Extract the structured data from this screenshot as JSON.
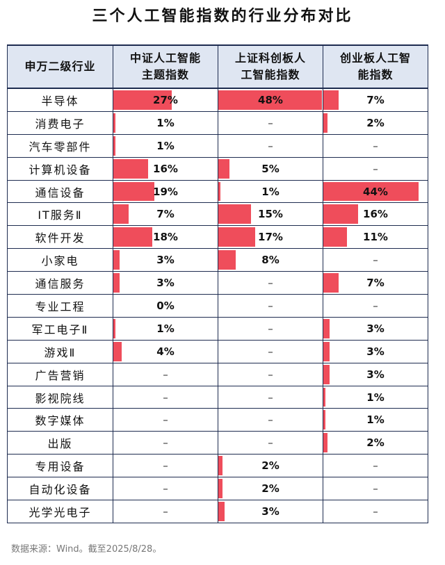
{
  "title": "三个人工智能指数的行业分布对比",
  "chart_data": {
    "type": "table",
    "columns": [
      "申万二级行业",
      "中证人工智能主题指数",
      "上证科创板人工智能指数",
      "创业板人工智能指数"
    ],
    "headers": [
      [
        "申万二级行业"
      ],
      [
        "中证人工智能",
        "主题指数"
      ],
      [
        "上证科创板人",
        "工智能指数"
      ],
      [
        "创业板人工智",
        "能指数"
      ]
    ],
    "bar_color": "#ef4d5b",
    "scale_max": 48,
    "rows": [
      {
        "industry": "半导体",
        "values": [
          27,
          48,
          7
        ],
        "labels": [
          "27%",
          "48%",
          "7%"
        ]
      },
      {
        "industry": "消费电子",
        "values": [
          1,
          null,
          2
        ],
        "labels": [
          "1%",
          "–",
          "2%"
        ]
      },
      {
        "industry": "汽车零部件",
        "values": [
          1,
          null,
          null
        ],
        "labels": [
          "1%",
          "–",
          "–"
        ]
      },
      {
        "industry": "计算机设备",
        "values": [
          16,
          5,
          null
        ],
        "labels": [
          "16%",
          "5%",
          "–"
        ]
      },
      {
        "industry": "通信设备",
        "values": [
          19,
          1,
          44
        ],
        "labels": [
          "19%",
          "1%",
          "44%"
        ]
      },
      {
        "industry": "IT服务Ⅱ",
        "values": [
          7,
          15,
          16
        ],
        "labels": [
          "7%",
          "15%",
          "16%"
        ]
      },
      {
        "industry": "软件开发",
        "values": [
          18,
          17,
          11
        ],
        "labels": [
          "18%",
          "17%",
          "11%"
        ]
      },
      {
        "industry": "小家电",
        "values": [
          3,
          8,
          null
        ],
        "labels": [
          "3%",
          "8%",
          "–"
        ]
      },
      {
        "industry": "通信服务",
        "values": [
          3,
          null,
          7
        ],
        "labels": [
          "3%",
          "–",
          "7%"
        ]
      },
      {
        "industry": "专业工程",
        "values": [
          0,
          null,
          null
        ],
        "labels": [
          "0%",
          "–",
          "–"
        ]
      },
      {
        "industry": "军工电子Ⅱ",
        "values": [
          1,
          null,
          3
        ],
        "labels": [
          "1%",
          "–",
          "3%"
        ]
      },
      {
        "industry": "游戏Ⅱ",
        "values": [
          4,
          null,
          3
        ],
        "labels": [
          "4%",
          "–",
          "3%"
        ]
      },
      {
        "industry": "广告营销",
        "values": [
          null,
          null,
          3
        ],
        "labels": [
          "–",
          "–",
          "3%"
        ]
      },
      {
        "industry": "影视院线",
        "values": [
          null,
          null,
          1
        ],
        "labels": [
          "–",
          "–",
          "1%"
        ]
      },
      {
        "industry": "数字媒体",
        "values": [
          null,
          null,
          1
        ],
        "labels": [
          "–",
          "–",
          "1%"
        ]
      },
      {
        "industry": "出版",
        "values": [
          null,
          null,
          2
        ],
        "labels": [
          "–",
          "–",
          "2%"
        ]
      },
      {
        "industry": "专用设备",
        "values": [
          null,
          2,
          null
        ],
        "labels": [
          "–",
          "2%",
          "–"
        ]
      },
      {
        "industry": "自动化设备",
        "values": [
          null,
          2,
          null
        ],
        "labels": [
          "–",
          "2%",
          "–"
        ]
      },
      {
        "industry": "光学光电子",
        "values": [
          null,
          3,
          null
        ],
        "labels": [
          "–",
          "3%",
          "–"
        ]
      }
    ]
  },
  "source": "数据来源：Wind。截至2025/8/28。"
}
